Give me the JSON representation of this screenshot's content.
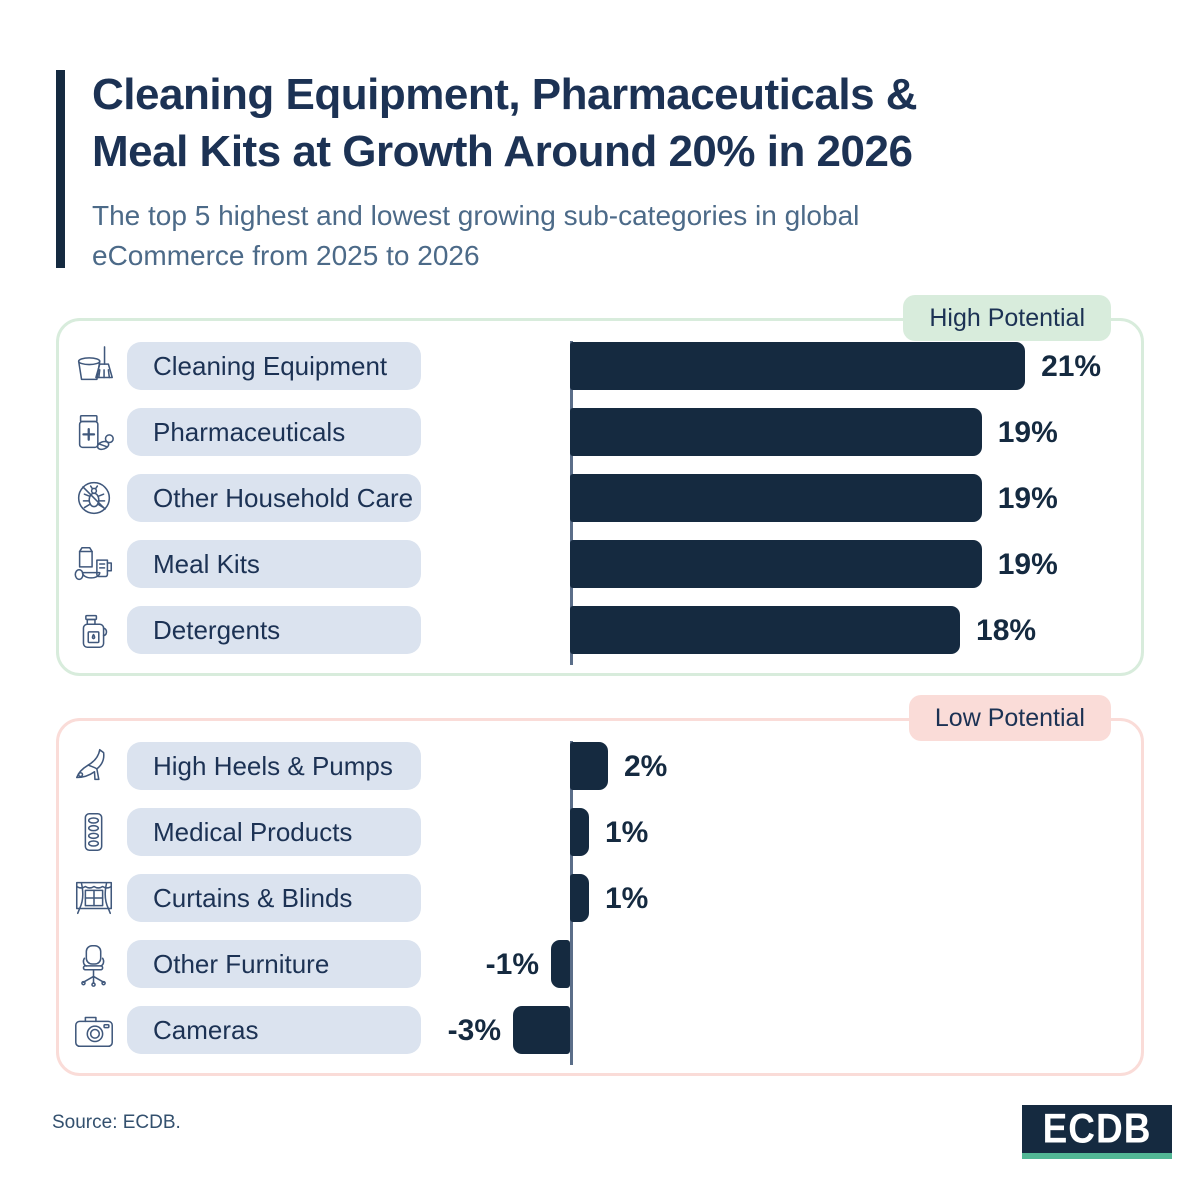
{
  "colors": {
    "navy": "#152a40",
    "title": "#1c3254",
    "subtitle": "#4c6a88",
    "source": "#33506e",
    "pill_bg": "#dbe3ef",
    "high_accent": "#d8ecdc",
    "low_accent": "#fadcd8",
    "baseline": "#5b6e89",
    "icon_stroke": "#40587c",
    "teal": "#52b795"
  },
  "header": {
    "title_lines": [
      "Cleaning Equipment, Pharmaceuticals &",
      "Meal Kits at Growth Around 20% in 2026"
    ],
    "subtitle_lines": [
      "The top 5 highest and lowest growing sub-categories in global",
      "eCommerce from 2025 to 2026"
    ]
  },
  "panels": [
    {
      "badge": "High Potential",
      "rows": [
        {
          "label": "Cleaning Equipment",
          "icon": "cleaning-equipment",
          "value": 21,
          "value_label": "21%"
        },
        {
          "label": "Pharmaceuticals",
          "icon": "pharmaceuticals",
          "value": 19,
          "value_label": "19%"
        },
        {
          "label": "Other Household Care",
          "icon": "no-bugs",
          "value": 19,
          "value_label": "19%"
        },
        {
          "label": "Meal Kits",
          "icon": "meal-kits",
          "value": 19,
          "value_label": "19%"
        },
        {
          "label": "Detergents",
          "icon": "detergents",
          "value": 18,
          "value_label": "18%"
        }
      ]
    },
    {
      "badge": "Low Potential",
      "rows": [
        {
          "label": "High Heels & Pumps",
          "icon": "high-heel",
          "value": 2,
          "value_label": "2%"
        },
        {
          "label": "Medical Products",
          "icon": "blister-pack",
          "value": 1,
          "value_label": "1%"
        },
        {
          "label": "Curtains & Blinds",
          "icon": "curtains",
          "value": 1,
          "value_label": "1%"
        },
        {
          "label": "Other Furniture",
          "icon": "office-chair",
          "value": -1,
          "value_label": "-1%"
        },
        {
          "label": "Cameras",
          "icon": "camera",
          "value": -3,
          "value_label": "-3%"
        }
      ]
    }
  ],
  "footer": {
    "source": "Source: ECDB.",
    "logo_text": "ECDB"
  },
  "chart_data": [
    {
      "type": "bar",
      "orientation": "horizontal",
      "title": "High Potential",
      "categories": [
        "Cleaning Equipment",
        "Pharmaceuticals",
        "Other Household Care",
        "Meal Kits",
        "Detergents"
      ],
      "values": [
        21,
        19,
        19,
        19,
        18
      ],
      "unit": "%",
      "xlim": [
        0,
        22
      ],
      "grid": false,
      "legend": false,
      "bar_color": "#152a40",
      "figure_title": "Cleaning Equipment, Pharmaceuticals & Meal Kits at Growth Around 20% in 2026",
      "figure_subtitle": "The top 5 highest and lowest growing sub-categories in global eCommerce from 2025 to 2026"
    },
    {
      "type": "bar",
      "orientation": "horizontal",
      "title": "Low Potential",
      "categories": [
        "High Heels & Pumps",
        "Medical Products",
        "Curtains & Blinds",
        "Other Furniture",
        "Cameras"
      ],
      "values": [
        2,
        1,
        1,
        -1,
        -3
      ],
      "unit": "%",
      "xlim": [
        -4,
        3
      ],
      "grid": false,
      "legend": false,
      "bar_color": "#152a40"
    }
  ]
}
